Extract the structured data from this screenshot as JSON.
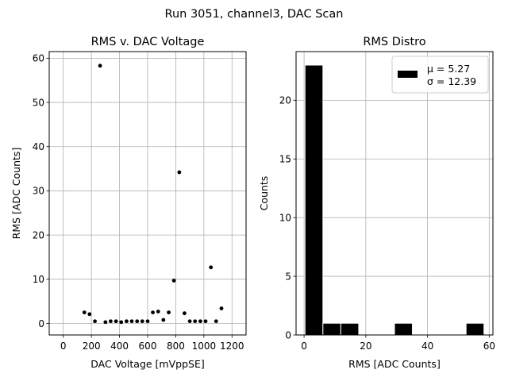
{
  "figure": {
    "suptitle": "Run 3051, channel3, DAC Scan"
  },
  "chart_data": [
    {
      "type": "scatter",
      "title": "RMS v. DAC Voltage",
      "xlabel": "DAC Voltage [mVppSE]",
      "ylabel": "RMS [ADC Counts]",
      "xlim": [
        -100,
        1300
      ],
      "ylim": [
        -2.6,
        61.5
      ],
      "xticks": [
        0,
        200,
        400,
        600,
        800,
        1000,
        1200
      ],
      "yticks": [
        0,
        10,
        20,
        30,
        40,
        50,
        60
      ],
      "grid": true,
      "marker_color": "#000000",
      "points": [
        {
          "x": 150,
          "y": 2.5
        },
        {
          "x": 187,
          "y": 2.1
        },
        {
          "x": 225,
          "y": 0.5
        },
        {
          "x": 262,
          "y": 58.3
        },
        {
          "x": 300,
          "y": 0.3
        },
        {
          "x": 337,
          "y": 0.5
        },
        {
          "x": 375,
          "y": 0.5
        },
        {
          "x": 412,
          "y": 0.3
        },
        {
          "x": 450,
          "y": 0.5
        },
        {
          "x": 487,
          "y": 0.5
        },
        {
          "x": 525,
          "y": 0.5
        },
        {
          "x": 562,
          "y": 0.5
        },
        {
          "x": 600,
          "y": 0.5
        },
        {
          "x": 637,
          "y": 2.5
        },
        {
          "x": 675,
          "y": 2.7
        },
        {
          "x": 712,
          "y": 0.8
        },
        {
          "x": 750,
          "y": 2.5
        },
        {
          "x": 787,
          "y": 9.7
        },
        {
          "x": 825,
          "y": 34.2
        },
        {
          "x": 862,
          "y": 2.3
        },
        {
          "x": 900,
          "y": 0.5
        },
        {
          "x": 937,
          "y": 0.5
        },
        {
          "x": 975,
          "y": 0.5
        },
        {
          "x": 1012,
          "y": 0.5
        },
        {
          "x": 1050,
          "y": 12.7
        },
        {
          "x": 1087,
          "y": 0.5
        },
        {
          "x": 1125,
          "y": 3.4
        }
      ]
    },
    {
      "type": "bar",
      "title": "RMS Distro",
      "xlabel": "RMS [ADC Counts]",
      "ylabel": "Counts",
      "xlim": [
        -2.6,
        61.2
      ],
      "ylim": [
        0,
        24.15
      ],
      "xticks": [
        0,
        20,
        40,
        60
      ],
      "yticks": [
        0,
        5,
        10,
        15,
        20
      ],
      "grid": true,
      "bar_color": "#000000",
      "bin_edges": [
        0.3,
        6.1,
        11.9,
        17.7,
        23.5,
        29.3,
        35.1,
        40.9,
        46.7,
        52.5,
        58.3
      ],
      "values": [
        23,
        1,
        1,
        0,
        0,
        1,
        0,
        0,
        0,
        1
      ],
      "legend": {
        "position": "upper right",
        "entries": [
          "μ = 5.27",
          "σ = 12.39"
        ]
      }
    }
  ]
}
